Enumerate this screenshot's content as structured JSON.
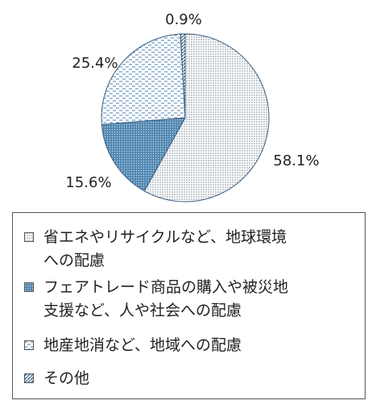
{
  "chart_data": {
    "type": "pie",
    "categories": [
      "省エネやリサイクルなど、地球環境\nへの配慮",
      "フェアトレード商品の購入や被災地\n支援など、人や社会への配慮",
      "地産地消など、地域への配慮",
      "その他"
    ],
    "values": [
      58.1,
      15.6,
      25.4,
      0.9
    ],
    "labels": [
      "58.1%",
      "15.6%",
      "25.4%",
      "0.9%"
    ],
    "legend_position": "bottom",
    "colors": [
      "#c9cfd6",
      "#5b8fb5",
      "#8fb3d4",
      "#2f5f86"
    ]
  }
}
